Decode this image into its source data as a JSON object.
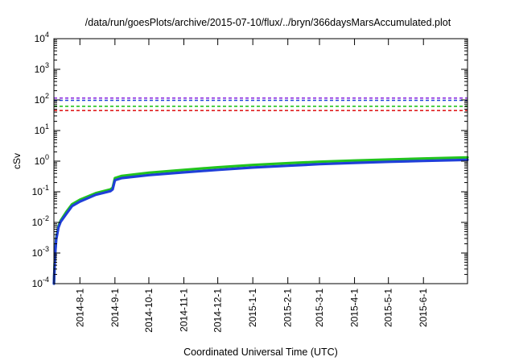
{
  "chart_data": {
    "type": "line",
    "title": "/data/run/goesPlots/archive/2015-07-10/flux/../bryn/366daysMarsAccumulated.plot",
    "xlabel": "Coordinated Universal Time (UTC)",
    "ylabel": "cSv",
    "yscale": "log",
    "ylim": [
      0.0001,
      10000
    ],
    "xlim": [
      "2014-07-09",
      "2015-07-10"
    ],
    "y_ticks": [
      {
        "value": 0.0001,
        "base": "10",
        "exp": "-4"
      },
      {
        "value": 0.001,
        "base": "10",
        "exp": "-3"
      },
      {
        "value": 0.01,
        "base": "10",
        "exp": "-2"
      },
      {
        "value": 0.1,
        "base": "10",
        "exp": "-1"
      },
      {
        "value": 1,
        "base": "10",
        "exp": "0"
      },
      {
        "value": 10,
        "base": "10",
        "exp": "1"
      },
      {
        "value": 100,
        "base": "10",
        "exp": "2"
      },
      {
        "value": 1000,
        "base": "10",
        "exp": "3"
      },
      {
        "value": 10000,
        "base": "10",
        "exp": "4"
      }
    ],
    "x_ticks": [
      {
        "date": "2014-08-01",
        "label": "2014-8-1"
      },
      {
        "date": "2014-09-01",
        "label": "2014-9-1"
      },
      {
        "date": "2014-10-01",
        "label": "2014-10-1"
      },
      {
        "date": "2014-11-01",
        "label": "2014-11-1"
      },
      {
        "date": "2014-12-01",
        "label": "2014-12-1"
      },
      {
        "date": "2015-01-01",
        "label": "2015-1-1"
      },
      {
        "date": "2015-02-01",
        "label": "2015-2-1"
      },
      {
        "date": "2015-03-01",
        "label": "2015-3-1"
      },
      {
        "date": "2015-04-01",
        "label": "2015-4-1"
      },
      {
        "date": "2015-05-01",
        "label": "2015-5-1"
      },
      {
        "date": "2015-06-01",
        "label": "2015-6-1"
      }
    ],
    "grid": false,
    "legend": false,
    "reference_lines": [
      {
        "value": 115,
        "color": "#8c2be0",
        "style": "dashed"
      },
      {
        "value": 97,
        "color": "#1f3fd8",
        "style": "dashed"
      },
      {
        "value": 62,
        "color": "#22c41e",
        "style": "dashed"
      },
      {
        "value": 45,
        "color": "#e01d1d",
        "style": "dashed"
      }
    ],
    "series": [
      {
        "color": "#22c41e",
        "x": [
          "2014-07-09",
          "2014-07-10",
          "2014-07-11",
          "2014-07-13",
          "2014-07-15",
          "2014-07-20",
          "2014-07-25",
          "2014-08-01",
          "2014-08-15",
          "2014-08-28",
          "2014-08-30",
          "2014-09-01",
          "2014-09-07",
          "2014-10-01",
          "2014-11-01",
          "2014-12-01",
          "2015-01-01",
          "2015-02-01",
          "2015-03-01",
          "2015-04-01",
          "2015-05-01",
          "2015-06-01",
          "2015-07-10"
        ],
        "y": [
          0.0001,
          0.0009,
          0.003,
          0.0075,
          0.0115,
          0.022,
          0.039,
          0.055,
          0.09,
          0.12,
          0.135,
          0.28,
          0.33,
          0.42,
          0.52,
          0.63,
          0.75,
          0.86,
          0.96,
          1.05,
          1.13,
          1.22,
          1.32
        ]
      },
      {
        "color": "#1f3fd8",
        "x": [
          "2014-07-09",
          "2014-07-10",
          "2014-07-11",
          "2014-07-13",
          "2014-07-15",
          "2014-07-20",
          "2014-07-25",
          "2014-08-01",
          "2014-08-15",
          "2014-08-28",
          "2014-08-30",
          "2014-09-01",
          "2014-09-07",
          "2014-10-01",
          "2014-11-01",
          "2014-12-01",
          "2015-01-01",
          "2015-02-01",
          "2015-03-01",
          "2015-04-01",
          "2015-05-01",
          "2015-06-01",
          "2015-07-10"
        ],
        "y": [
          0.0001,
          0.0008,
          0.0027,
          0.0068,
          0.0105,
          0.019,
          0.034,
          0.048,
          0.08,
          0.105,
          0.12,
          0.24,
          0.28,
          0.35,
          0.43,
          0.52,
          0.62,
          0.71,
          0.8,
          0.88,
          0.95,
          1.02,
          1.1
        ]
      }
    ]
  }
}
